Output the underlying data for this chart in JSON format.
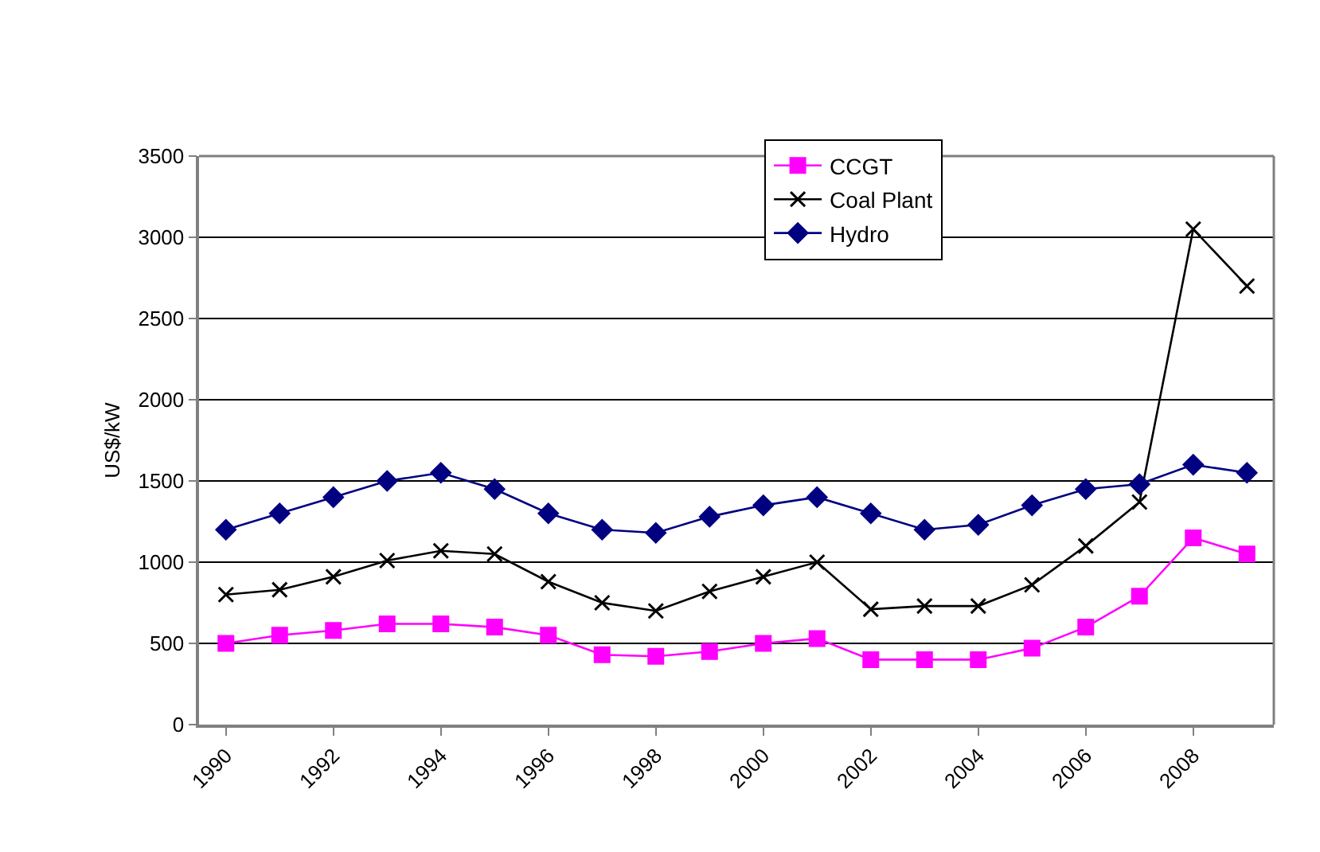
{
  "chart_data": {
    "type": "line",
    "ylabel": "US$/kW",
    "categories": [
      "1990",
      null,
      "1992",
      null,
      "1994",
      null,
      "1996",
      null,
      "1998",
      null,
      "2000",
      null,
      "2002",
      null,
      "2004",
      null,
      "2006",
      null,
      "2008",
      null
    ],
    "series": [
      {
        "name": "CCGT",
        "color": "#ff00ff",
        "marker": "square",
        "values": [
          500,
          550,
          580,
          620,
          620,
          600,
          550,
          430,
          420,
          450,
          500,
          530,
          400,
          400,
          400,
          470,
          600,
          790,
          1150,
          1050
        ]
      },
      {
        "name": "Coal Plant",
        "color": "#000000",
        "marker": "cross",
        "values": [
          800,
          830,
          910,
          1010,
          1070,
          1050,
          880,
          750,
          700,
          820,
          910,
          1000,
          710,
          730,
          730,
          860,
          1100,
          1370,
          3050,
          2700
        ]
      },
      {
        "name": "Hydro",
        "color": "#000080",
        "marker": "diamond",
        "values": [
          1200,
          1300,
          1400,
          1500,
          1550,
          1450,
          1300,
          1200,
          1180,
          1280,
          1350,
          1400,
          1300,
          1200,
          1230,
          1350,
          1450,
          1480,
          1600,
          1550
        ]
      }
    ],
    "ylim": [
      0,
      3500
    ],
    "yticks": [
      0,
      500,
      1000,
      1500,
      2000,
      2500,
      3000,
      3500
    ],
    "grid": "y",
    "legend": "top right",
    "line_style": "solid"
  }
}
